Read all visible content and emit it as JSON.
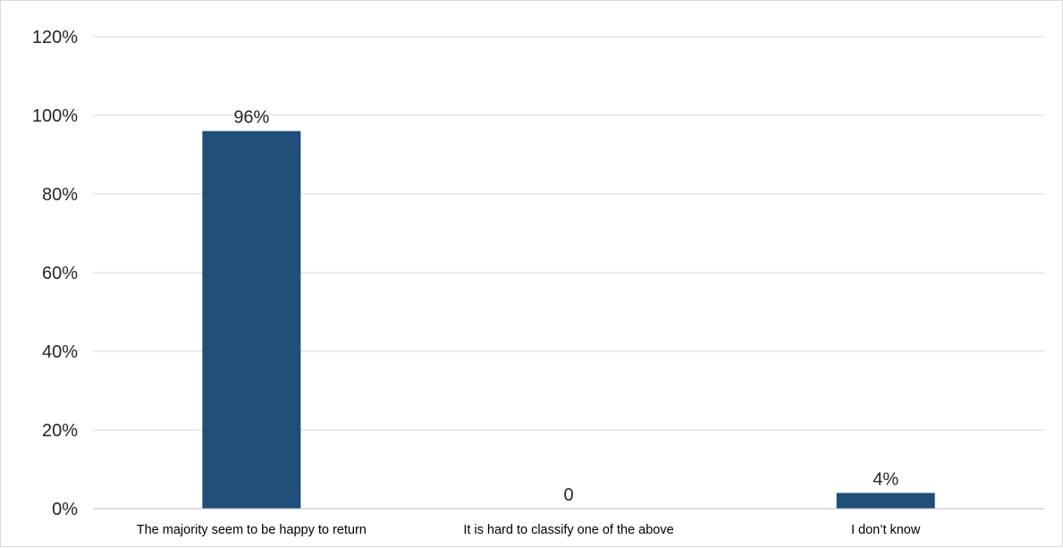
{
  "chart_data": {
    "type": "bar",
    "categories": [
      "The majority seem to be happy to return",
      "It is hard to classify one of the above",
      "I don’t know"
    ],
    "values": [
      96,
      0,
      4
    ],
    "data_labels": [
      "96%",
      "0",
      "4%"
    ],
    "yticks": [
      "0%",
      "20%",
      "40%",
      "60%",
      "80%",
      "100%",
      "120%"
    ],
    "ylim": [
      0,
      120
    ],
    "grid": true,
    "legend": "none",
    "colors": {
      "bar": "#1f4e79",
      "grid": "#d9d9d9",
      "axis": "#bfbfbf",
      "text": "#262626"
    }
  }
}
